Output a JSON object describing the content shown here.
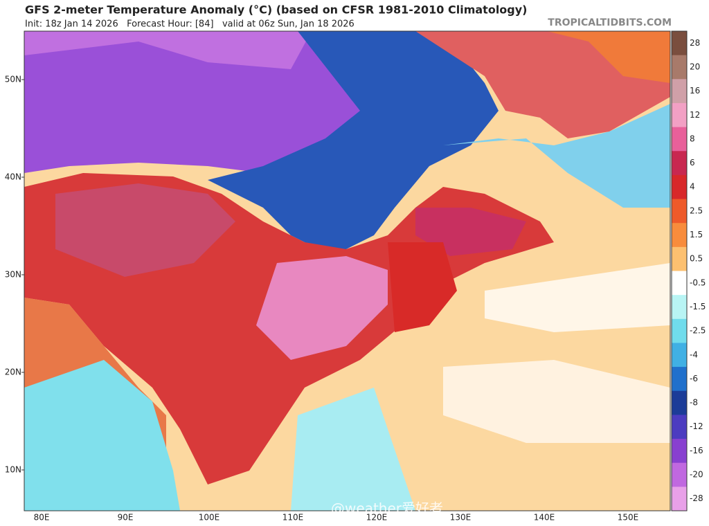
{
  "header": {
    "title": "GFS 2-meter Temperature Anomaly (°C) (based on CFSR 1981-2010 Climatology)",
    "subtitle": "Init: 18z Jan 14 2026   Forecast Hour: [84]   valid at 06z Sun, Jan 18 2026",
    "site": "TROPICALTIDBITS.COM"
  },
  "map": {
    "latitude_labels": [
      "50N",
      "40N",
      "30N",
      "20N",
      "10N"
    ],
    "longitude_labels": [
      "80E",
      "90E",
      "100E",
      "110E",
      "120E",
      "130E",
      "140E",
      "150E"
    ]
  },
  "colorbar": {
    "labels": [
      "28",
      "20",
      "16",
      "12",
      "8",
      "6",
      "4",
      "2.5",
      "1.5",
      "0.5",
      "-0.5",
      "-1.5",
      "-2.5",
      "-4",
      "-6",
      "-8",
      "-12",
      "-16",
      "-20",
      "-28"
    ],
    "colors": [
      "#7a4e3e",
      "#a87a6a",
      "#d0a0a8",
      "#f2a0c4",
      "#e8609a",
      "#c82850",
      "#d8282a",
      "#ee5a2a",
      "#f88c3c",
      "#fcc070",
      "#ffffff",
      "#b8f4f4",
      "#70dcec",
      "#40b0e4",
      "#2070cc",
      "#1c3c98",
      "#4c3cc0",
      "#8840d0",
      "#c068e0",
      "#e8a0e8"
    ]
  },
  "watermark": "@weather爱好者"
}
